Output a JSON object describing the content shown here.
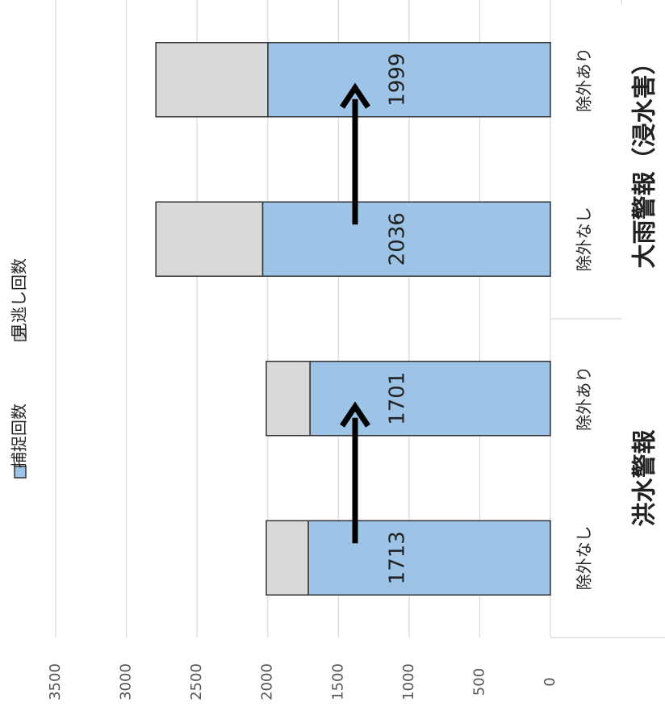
{
  "chart_data": {
    "type": "bar",
    "orientation": "rotated",
    "categories": [
      "除外なし",
      "除外あり",
      "除外なし",
      "除外あり"
    ],
    "groups": [
      {
        "label": "洪水警報",
        "span": [
          0,
          1
        ]
      },
      {
        "label": "大雨警報（浸水害）",
        "span": [
          2,
          3
        ]
      }
    ],
    "series": [
      {
        "name": "捕捉回数",
        "color": "#9dc3e6",
        "values": [
          1713,
          1701,
          2036,
          1999
        ]
      },
      {
        "name": "見逃し回数",
        "color": "#d9d9d9",
        "values": [
          297,
          309,
          755,
          792
        ]
      }
    ],
    "ylim": [
      0,
      3500
    ],
    "yticks": [
      0,
      500,
      1000,
      1500,
      2000,
      2500,
      3000,
      3500
    ],
    "grid": true,
    "stacked": true
  }
}
